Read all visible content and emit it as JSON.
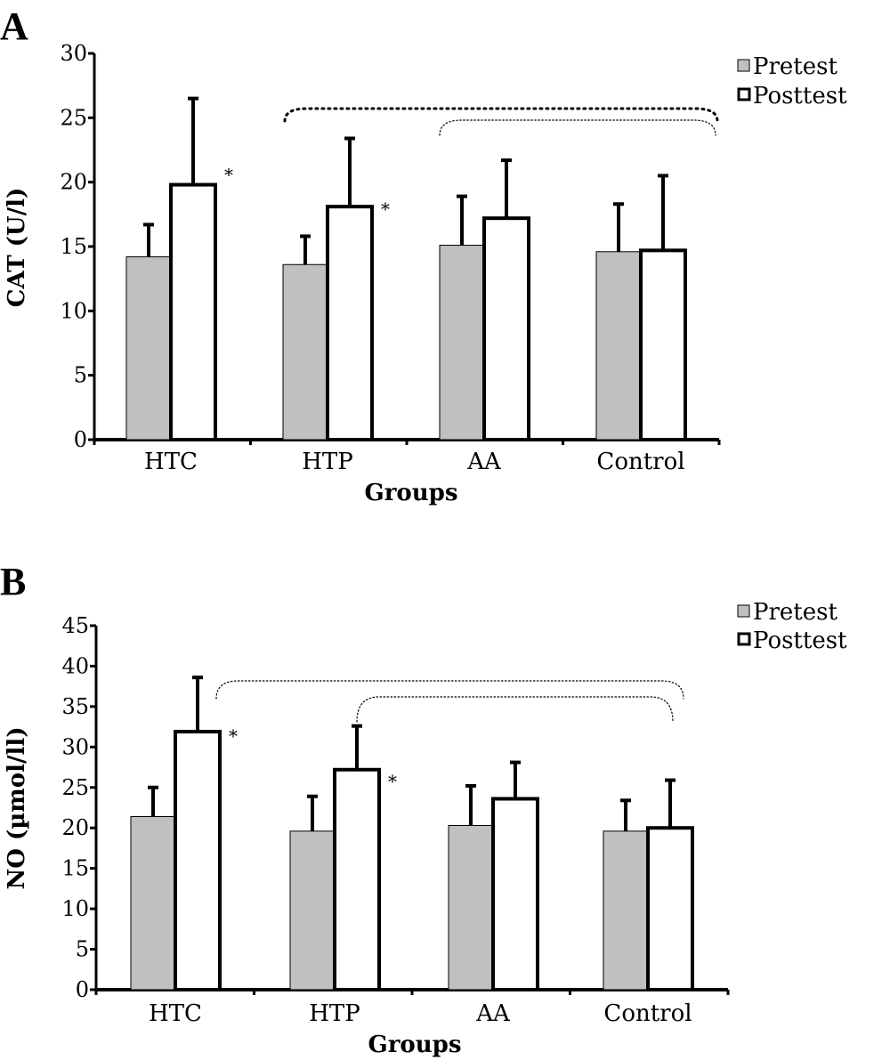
{
  "legend": {
    "pretest": "Pretest",
    "posttest": "Posttest"
  },
  "colors": {
    "pretest_fill": "#c0c0c0",
    "posttest_fill": "#ffffff",
    "outline": "#000000"
  },
  "chart_data": [
    {
      "type": "bar",
      "panel_label": "A",
      "xlabel": "Groups",
      "ylabel": "CAT (U/l)",
      "ylim": [
        0,
        30
      ],
      "yticks": [
        0,
        5,
        10,
        15,
        20,
        25,
        30
      ],
      "categories": [
        "HTC",
        "HTP",
        "AA",
        "Control"
      ],
      "series": [
        {
          "name": "Pretest",
          "values": [
            14.2,
            13.6,
            15.1,
            14.6
          ],
          "errors": [
            2.5,
            2.2,
            3.8,
            3.7
          ]
        },
        {
          "name": "Posttest",
          "values": [
            19.8,
            18.1,
            17.2,
            14.7
          ],
          "errors": [
            6.7,
            5.3,
            4.5,
            5.8
          ]
        }
      ],
      "significance_marks": [
        "*",
        "*",
        "",
        ""
      ],
      "brackets": [
        {
          "from": "HTP",
          "to": "Control",
          "style": "dotted-bold"
        },
        {
          "from": "AA",
          "to": "Control",
          "style": "dotted-thin"
        }
      ],
      "legend_position": "top-right"
    },
    {
      "type": "bar",
      "panel_label": "B",
      "xlabel": "Groups",
      "ylabel": "NO (µmol/ll)",
      "ylim": [
        0,
        45
      ],
      "yticks": [
        0,
        5,
        10,
        15,
        20,
        25,
        30,
        35,
        40,
        45
      ],
      "categories": [
        "HTC",
        "HTP",
        "AA",
        "Control"
      ],
      "series": [
        {
          "name": "Pretest",
          "values": [
            21.4,
            19.6,
            20.3,
            19.6
          ],
          "errors": [
            3.6,
            4.3,
            4.9,
            3.8
          ]
        },
        {
          "name": "Posttest",
          "values": [
            31.9,
            27.2,
            23.6,
            20.0
          ],
          "errors": [
            6.7,
            5.4,
            4.5,
            5.9
          ]
        }
      ],
      "significance_marks": [
        "*",
        "*",
        "",
        ""
      ],
      "brackets": [
        {
          "from": "HTC",
          "to": "Control",
          "style": "dotted-thin"
        },
        {
          "from": "HTP",
          "to": "Control",
          "style": "dotted-thin"
        }
      ],
      "legend_position": "top-right"
    }
  ]
}
